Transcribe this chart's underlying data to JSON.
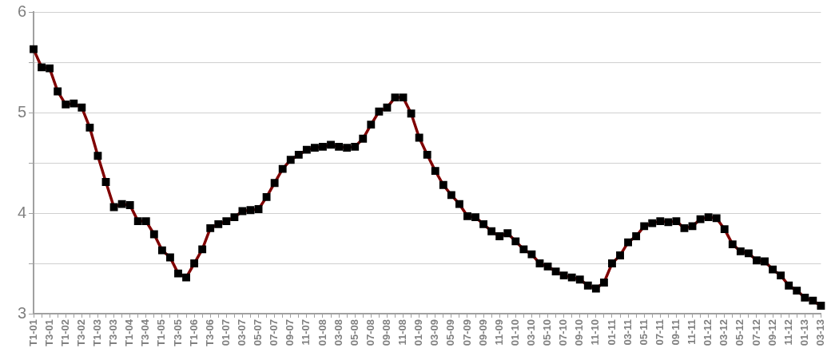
{
  "chart_data": {
    "type": "line",
    "categories": [
      "T1-01",
      null,
      "T3-01",
      null,
      "T1-02",
      null,
      "T3-02",
      null,
      "T1-03",
      null,
      "T3-03",
      null,
      "T1-04",
      null,
      "T3-04",
      null,
      "T1-05",
      null,
      "T3-05",
      null,
      "T1-06",
      null,
      "T3-06",
      null,
      "01-07",
      null,
      "03-07",
      null,
      "05-07",
      null,
      "07-07",
      null,
      "09-07",
      null,
      "11-07",
      null,
      "01-08",
      null,
      "03-08",
      null,
      "05-08",
      null,
      "07-08",
      null,
      "09-08",
      null,
      "11-08",
      null,
      "01-09",
      null,
      "03-09",
      null,
      "05-09",
      null,
      "07-09",
      null,
      "09-09",
      null,
      "11-09",
      null,
      "01-10",
      null,
      "03-10",
      null,
      "05-10",
      null,
      "07-10",
      null,
      "09-10",
      null,
      "11-10",
      null,
      "01-11",
      null,
      "03-11",
      null,
      "05-11",
      null,
      "07-11",
      null,
      "09-11",
      null,
      "11-11",
      null,
      "01-12",
      null,
      "03-12",
      null,
      "05-12",
      null,
      "07-12",
      null,
      "09-12",
      null,
      "11-12",
      null,
      "01-13",
      null,
      "03-13"
    ],
    "series": [
      {
        "color": "#800000",
        "values": [
          5.63,
          5.45,
          5.44,
          5.21,
          5.08,
          5.09,
          5.05,
          4.85,
          4.57,
          4.31,
          4.06,
          4.09,
          4.08,
          3.92,
          3.92,
          3.79,
          3.63,
          3.56,
          3.4,
          3.36,
          3.5,
          3.64,
          3.85,
          3.89,
          3.92,
          3.96,
          4.02,
          4.03,
          4.04,
          4.16,
          4.3,
          4.44,
          4.53,
          4.58,
          4.63,
          4.65,
          4.66,
          4.68,
          4.66,
          4.65,
          4.66,
          4.74,
          4.88,
          5.01,
          5.05,
          5.15,
          5.15,
          4.99,
          4.75,
          4.58,
          4.42,
          4.28,
          4.18,
          4.09,
          3.97,
          3.96,
          3.89,
          3.82,
          3.77,
          3.8,
          3.72,
          3.64,
          3.59,
          3.5,
          3.47,
          3.42,
          3.38,
          3.36,
          3.34,
          3.28,
          3.25,
          3.31,
          3.5,
          3.58,
          3.71,
          3.77,
          3.87,
          3.9,
          3.92,
          3.91,
          3.92,
          3.85,
          3.87,
          3.94,
          3.96,
          3.95,
          3.84,
          3.69,
          3.62,
          3.6,
          3.53,
          3.52,
          3.44,
          3.38,
          3.28,
          3.23,
          3.16,
          3.13,
          3.08
        ]
      }
    ],
    "ylim": [
      3,
      6
    ],
    "yticks": [
      3,
      {
        "value": 3.5,
        "label": null
      },
      4,
      {
        "value": 4.5,
        "label": null
      },
      5,
      {
        "value": 5.5,
        "label": null
      },
      6
    ],
    "grid": "y",
    "legend": false,
    "marker": "square",
    "line_style": "solid"
  }
}
